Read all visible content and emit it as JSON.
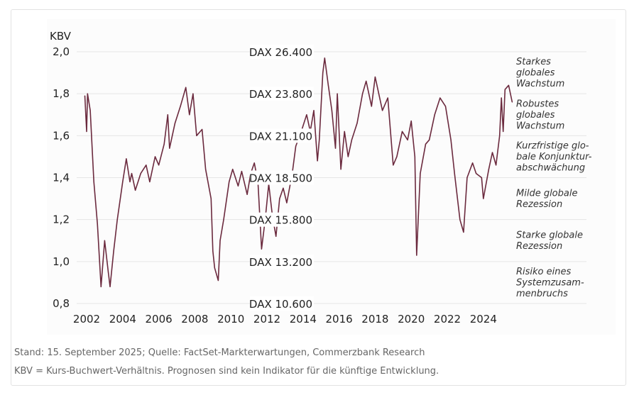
{
  "chart_data": {
    "type": "line",
    "title": "",
    "ylabel": "KBV",
    "xlabel": "",
    "ylim": [
      0.8,
      2.0
    ],
    "xlim": [
      2001.6,
      2026.0
    ],
    "y_ticks": [
      "2,0",
      "1,8",
      "1,6",
      "1,4",
      "1,2",
      "1,0",
      "0,8"
    ],
    "y_tick_values": [
      2.0,
      1.8,
      1.6,
      1.4,
      1.2,
      1.0,
      0.8
    ],
    "x_ticks": [
      "2002",
      "2004",
      "2006",
      "2008",
      "2010",
      "2012",
      "2014",
      "2016",
      "2018",
      "2020",
      "2022",
      "2024"
    ],
    "x_tick_values": [
      2002,
      2004,
      2006,
      2008,
      2010,
      2012,
      2014,
      2016,
      2018,
      2020,
      2022,
      2024
    ],
    "grid": true,
    "dax_levels": [
      {
        "label": "DAX 26.400",
        "kbv": 2.0
      },
      {
        "label": "DAX 23.800",
        "kbv": 1.8
      },
      {
        "label": "DAX 21.100",
        "kbv": 1.6
      },
      {
        "label": "DAX 18.500",
        "kbv": 1.4
      },
      {
        "label": "DAX 15.800",
        "kbv": 1.2
      },
      {
        "label": "DAX 13.200",
        "kbv": 1.0
      },
      {
        "label": "DAX 10.600",
        "kbv": 0.8
      }
    ],
    "scenarios": [
      {
        "lines": [
          "Starkes",
          "globales",
          "Wachstum"
        ],
        "range": [
          1.8,
          2.0
        ]
      },
      {
        "lines": [
          "Robustes",
          "globales",
          "Wachstum"
        ],
        "range": [
          1.6,
          1.8
        ]
      },
      {
        "lines": [
          "Kurzfristige glo-",
          "bale Konjunktur-",
          "abschwächung"
        ],
        "range": [
          1.4,
          1.6
        ]
      },
      {
        "lines": [
          "Milde globale",
          "Rezession"
        ],
        "range": [
          1.2,
          1.4
        ]
      },
      {
        "lines": [
          "Starke globale",
          "Rezession"
        ],
        "range": [
          1.0,
          1.2
        ]
      },
      {
        "lines": [
          "Risiko eines",
          "Systemzusam-",
          "menbruchs"
        ],
        "range": [
          0.8,
          1.0
        ]
      }
    ],
    "series": [
      {
        "name": "KBV",
        "color": "#6b2a3e",
        "x": [
          2001.9,
          2002.0,
          2002.05,
          2002.2,
          2002.4,
          2002.6,
          2002.8,
          2003.0,
          2003.2,
          2003.3,
          2003.5,
          2003.7,
          2004.0,
          2004.2,
          2004.4,
          2004.5,
          2004.7,
          2005.0,
          2005.3,
          2005.5,
          2005.8,
          2006.0,
          2006.3,
          2006.5,
          2006.6,
          2006.9,
          2007.2,
          2007.5,
          2007.7,
          2007.9,
          2008.1,
          2008.4,
          2008.6,
          2008.9,
          2009.0,
          2009.1,
          2009.3,
          2009.4,
          2009.6,
          2009.9,
          2010.1,
          2010.4,
          2010.6,
          2010.9,
          2011.1,
          2011.3,
          2011.5,
          2011.7,
          2011.9,
          2012.1,
          2012.3,
          2012.5,
          2012.7,
          2012.9,
          2013.1,
          2013.4,
          2013.6,
          2013.9,
          2014.2,
          2014.4,
          2014.6,
          2014.8,
          2014.9,
          2015.1,
          2015.2,
          2015.4,
          2015.6,
          2015.8,
          2015.9,
          2016.1,
          2016.3,
          2016.5,
          2016.7,
          2017.0,
          2017.3,
          2017.5,
          2017.8,
          2018.0,
          2018.2,
          2018.4,
          2018.7,
          2019.0,
          2019.2,
          2019.5,
          2019.8,
          2020.0,
          2020.2,
          2020.3,
          2020.5,
          2020.8,
          2021.0,
          2021.3,
          2021.6,
          2021.9,
          2022.2,
          2022.4,
          2022.7,
          2022.9,
          2023.1,
          2023.4,
          2023.6,
          2023.9,
          2024.0,
          2024.3,
          2024.5,
          2024.7,
          2024.9,
          2025.0,
          2025.1,
          2025.2,
          2025.4,
          2025.6
        ],
        "values": [
          1.79,
          1.62,
          1.8,
          1.72,
          1.38,
          1.18,
          0.88,
          1.1,
          0.95,
          0.88,
          1.05,
          1.2,
          1.38,
          1.49,
          1.38,
          1.42,
          1.34,
          1.42,
          1.46,
          1.38,
          1.5,
          1.46,
          1.56,
          1.7,
          1.54,
          1.66,
          1.74,
          1.83,
          1.7,
          1.8,
          1.6,
          1.63,
          1.44,
          1.3,
          1.05,
          0.97,
          0.91,
          1.1,
          1.2,
          1.38,
          1.44,
          1.36,
          1.43,
          1.32,
          1.42,
          1.47,
          1.38,
          1.06,
          1.2,
          1.37,
          1.22,
          1.12,
          1.3,
          1.35,
          1.28,
          1.42,
          1.55,
          1.62,
          1.7,
          1.62,
          1.72,
          1.48,
          1.58,
          1.9,
          1.97,
          1.84,
          1.72,
          1.54,
          1.8,
          1.44,
          1.62,
          1.5,
          1.58,
          1.66,
          1.8,
          1.86,
          1.74,
          1.88,
          1.8,
          1.72,
          1.78,
          1.46,
          1.5,
          1.62,
          1.58,
          1.67,
          1.5,
          1.03,
          1.42,
          1.56,
          1.58,
          1.7,
          1.78,
          1.74,
          1.58,
          1.42,
          1.2,
          1.14,
          1.4,
          1.47,
          1.42,
          1.4,
          1.3,
          1.44,
          1.52,
          1.46,
          1.6,
          1.78,
          1.62,
          1.82,
          1.84,
          1.76
        ]
      }
    ],
    "gridline_color": "#e6e6e6",
    "text_color": "#222222",
    "scenario_text_color": "#333333"
  },
  "footer": {
    "source": "Stand: 15. September 2025; Quelle: FactSet-Markterwartungen, Commerzbank Research",
    "note": "KBV = Kurs-Buchwert-Verhältnis. Prognosen sind kein Indikator für die künftige Entwicklung."
  }
}
